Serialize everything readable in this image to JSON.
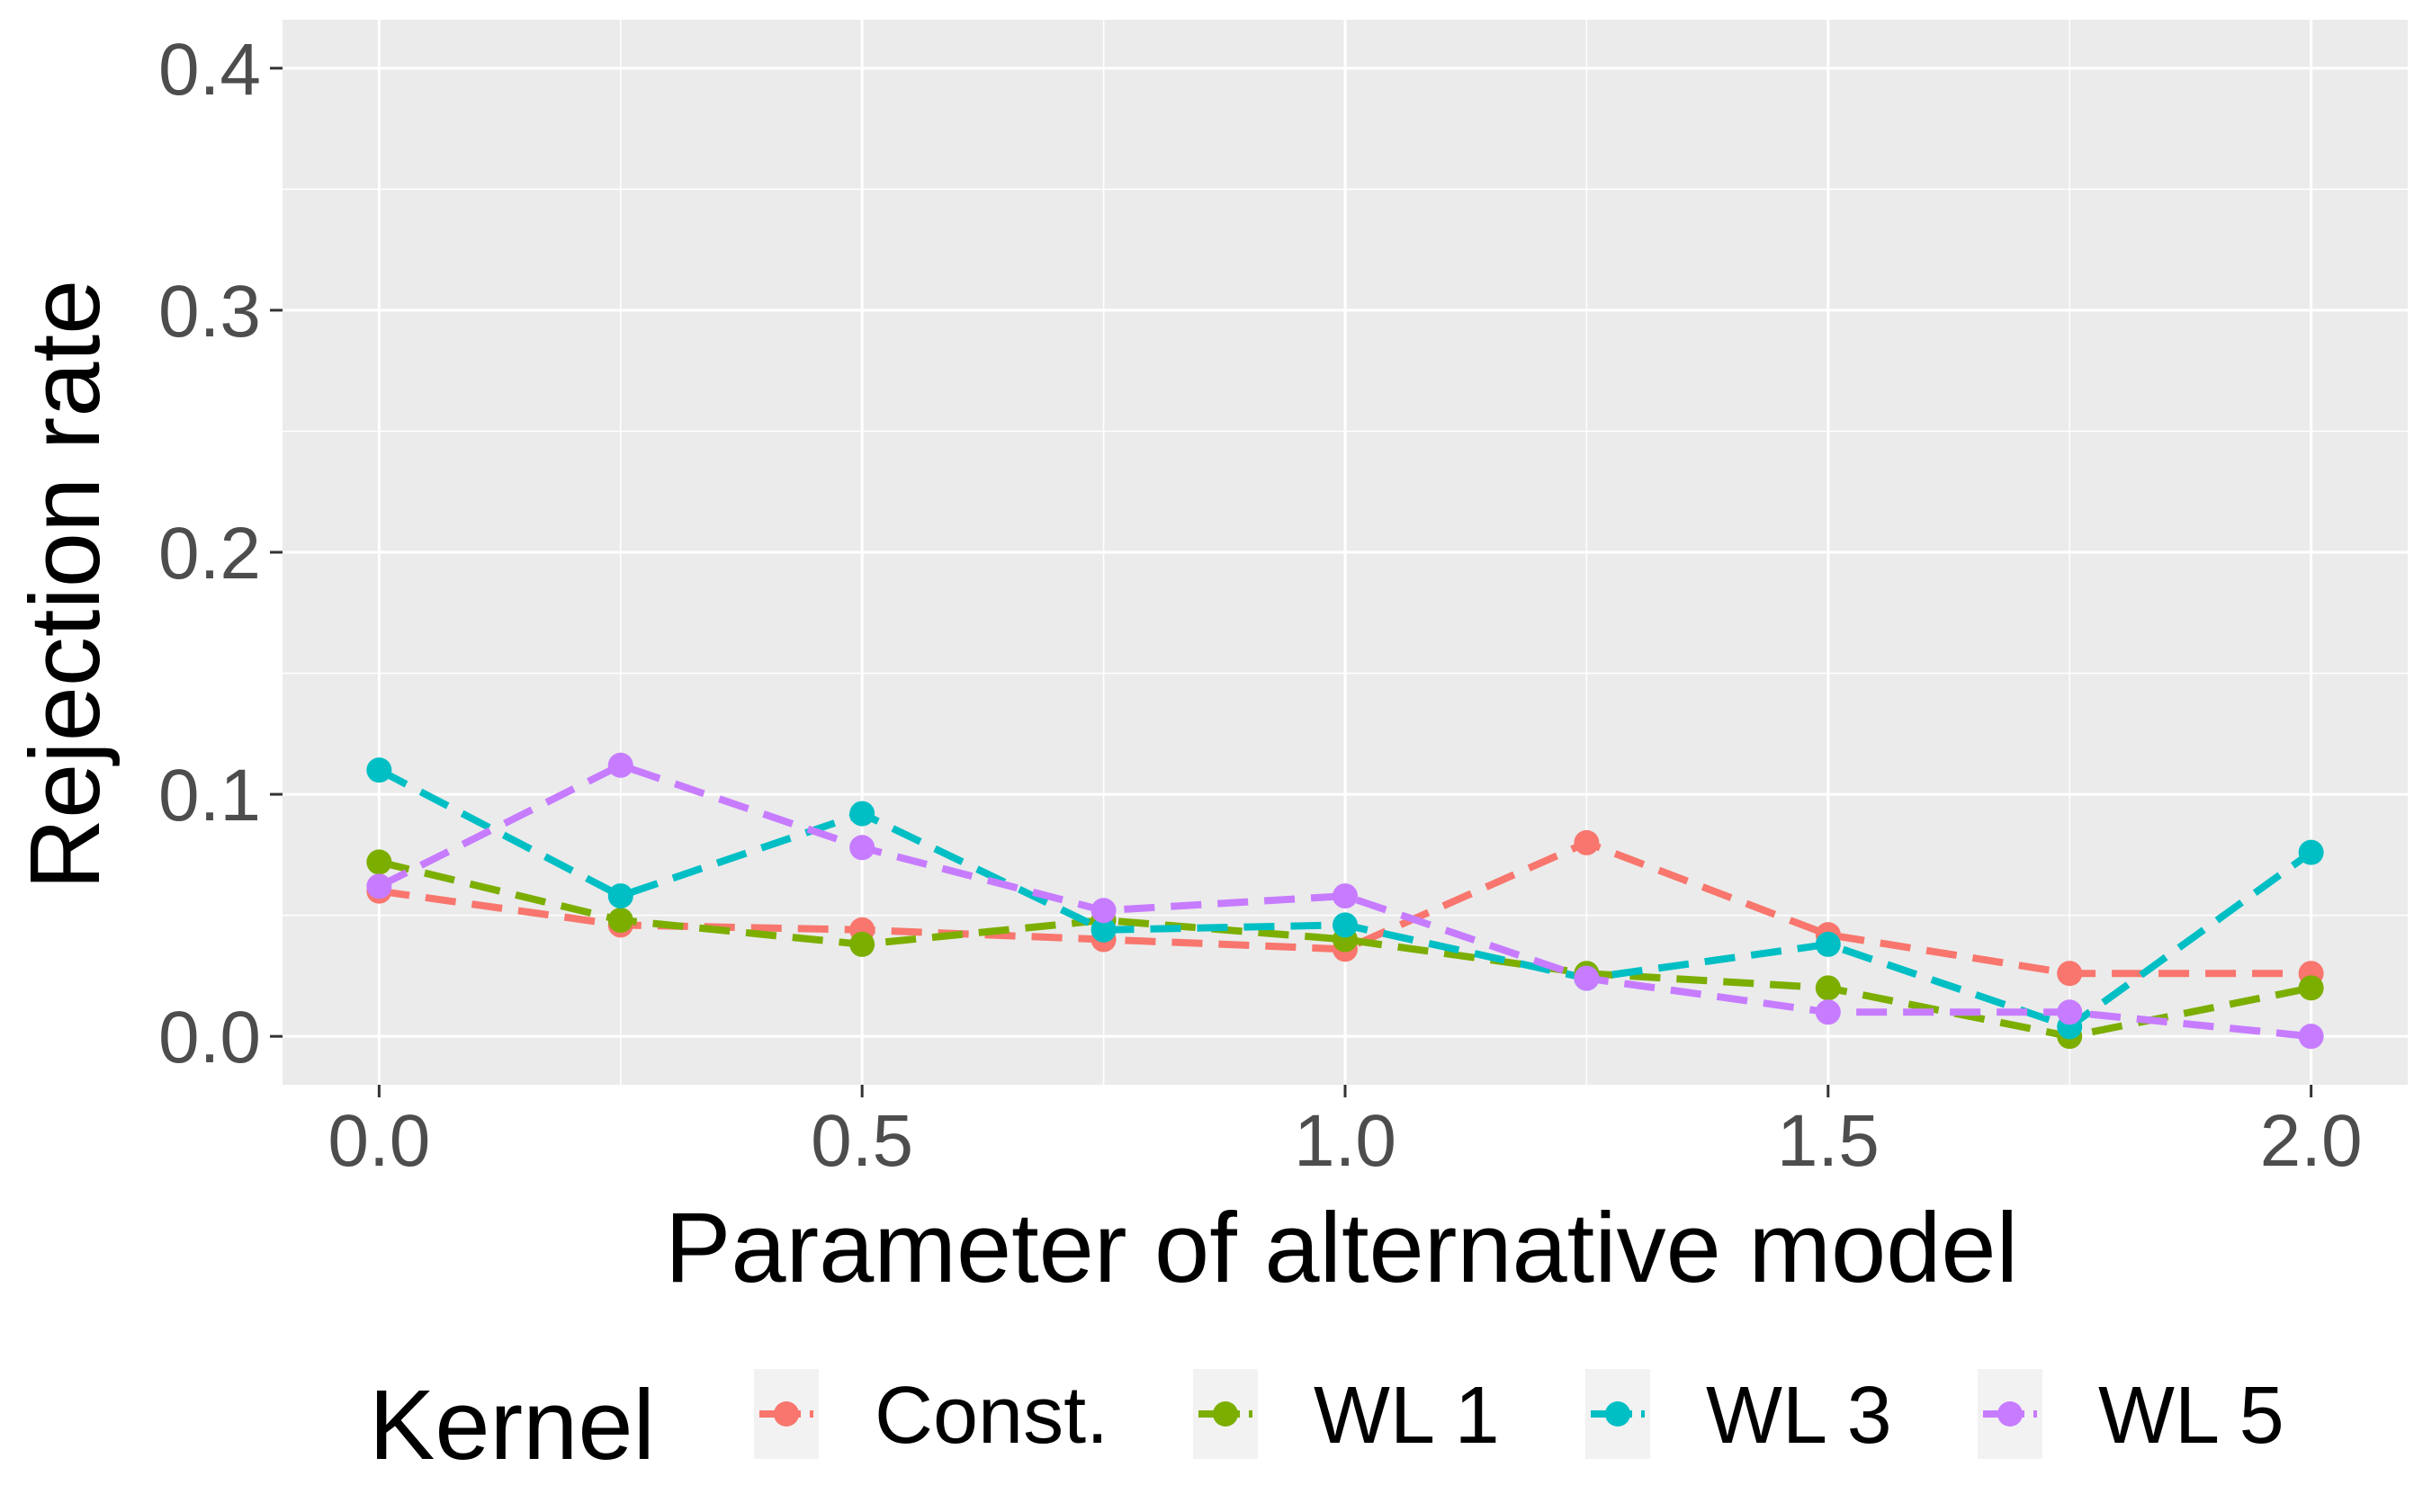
{
  "chart_data": {
    "type": "line",
    "xlabel": "Parameter of alternative model",
    "ylabel": "Rejection rate",
    "x": [
      0.0,
      0.25,
      0.5,
      0.75,
      1.0,
      1.25,
      1.5,
      1.75,
      2.0
    ],
    "xlim": [
      -0.1,
      2.1
    ],
    "ylim": [
      -0.02,
      0.42
    ],
    "x_ticks": [
      "0.0",
      "0.5",
      "1.0",
      "1.5",
      "2.0"
    ],
    "x_tick_values": [
      0.0,
      0.5,
      1.0,
      1.5,
      2.0
    ],
    "y_ticks": [
      "0.0",
      "0.1",
      "0.2",
      "0.3",
      "0.4"
    ],
    "y_tick_values": [
      0.0,
      0.1,
      0.2,
      0.3,
      0.4
    ],
    "grid": true,
    "line_style": "dashed",
    "legend": {
      "title": "Kernel",
      "placement": "bottom"
    },
    "series": [
      {
        "name": "Const.",
        "color": "#F8766D",
        "values": [
          0.06,
          0.046,
          0.044,
          0.04,
          0.036,
          0.08,
          0.042,
          0.026,
          0.026
        ]
      },
      {
        "name": "WL 1",
        "color": "#7CAE00",
        "values": [
          0.072,
          0.048,
          0.038,
          0.048,
          0.04,
          0.026,
          0.02,
          0.0,
          0.02
        ]
      },
      {
        "name": "WL 3",
        "color": "#00BFC4",
        "values": [
          0.11,
          0.058,
          0.092,
          0.044,
          0.046,
          0.024,
          0.038,
          0.004,
          0.076
        ]
      },
      {
        "name": "WL 5",
        "color": "#C77CFF",
        "values": [
          0.062,
          0.112,
          0.078,
          0.052,
          0.058,
          0.024,
          0.01,
          0.01,
          0.0
        ]
      }
    ]
  }
}
